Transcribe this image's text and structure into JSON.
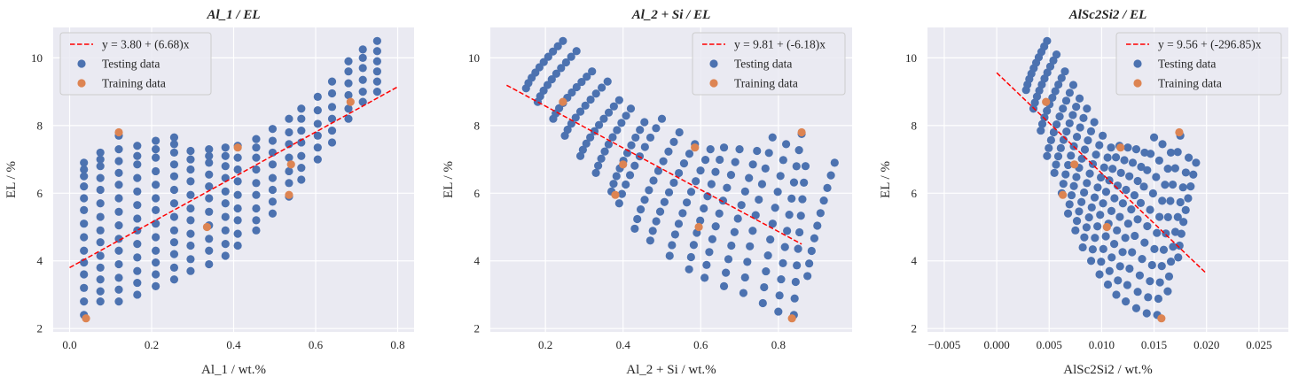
{
  "colors": {
    "panel_background": "#EAEAF2",
    "grid": "#FFFFFF",
    "testing": "#4C72B0",
    "training": "#DD8452",
    "fit_line": "#FF0000"
  },
  "legend": {
    "testing_label": "Testing data",
    "training_label": "Training data"
  },
  "chart_data": [
    {
      "type": "scatter",
      "title": "Al_1 / EL",
      "xlabel": "Al_1 / wt.%",
      "ylabel": "EL / %",
      "xlim": [
        -0.04,
        0.84
      ],
      "ylim": [
        1.9,
        10.9
      ],
      "x_ticks": [
        0.0,
        0.2,
        0.4,
        0.6,
        0.8
      ],
      "x_tick_labels": [
        "0.0",
        "0.2",
        "0.4",
        "0.6",
        "0.8"
      ],
      "y_ticks": [
        2,
        4,
        6,
        8,
        10
      ],
      "y_tick_labels": [
        "2",
        "4",
        "6",
        "8",
        "10"
      ],
      "grid": true,
      "legend_position": "top-left",
      "fit": {
        "label": "y = 3.80 + (6.68)x",
        "intercept": 3.8,
        "slope": 6.68,
        "x_range": [
          0.0,
          0.8
        ]
      },
      "testing_columns": [
        {
          "x": 0.035,
          "y": [
            2.4,
            2.8,
            3.2,
            3.6,
            3.95,
            4.3,
            4.7,
            5.1,
            5.5,
            5.85,
            6.2,
            6.5,
            6.7,
            6.9
          ]
        },
        {
          "x": 0.075,
          "y": [
            2.8,
            3.1,
            3.45,
            3.8,
            4.15,
            4.55,
            4.9,
            5.3,
            5.7,
            6.1,
            6.45,
            6.8,
            7.0,
            7.2
          ]
        },
        {
          "x": 0.12,
          "y": [
            2.8,
            3.15,
            3.5,
            3.9,
            4.3,
            4.65,
            5.05,
            5.45,
            5.85,
            6.25,
            6.6,
            6.95,
            7.3,
            7.7
          ]
        },
        {
          "x": 0.165,
          "y": [
            3.0,
            3.35,
            3.7,
            4.1,
            4.5,
            4.9,
            5.25,
            5.65,
            6.05,
            6.45,
            6.85,
            7.1,
            7.4
          ]
        },
        {
          "x": 0.21,
          "y": [
            3.25,
            3.6,
            3.95,
            4.3,
            4.7,
            5.1,
            5.5,
            5.85,
            6.25,
            6.65,
            7.05,
            7.3,
            7.55
          ]
        },
        {
          "x": 0.255,
          "y": [
            3.45,
            3.8,
            4.2,
            4.55,
            4.9,
            5.3,
            5.7,
            6.1,
            6.5,
            6.85,
            7.2,
            7.45,
            7.65
          ]
        },
        {
          "x": 0.295,
          "y": [
            3.7,
            4.05,
            4.45,
            4.8,
            5.2,
            5.55,
            5.95,
            6.35,
            6.7,
            7.0,
            7.25
          ]
        },
        {
          "x": 0.34,
          "y": [
            3.9,
            4.3,
            4.65,
            5.05,
            5.45,
            5.85,
            6.2,
            6.55,
            6.9,
            7.1,
            7.3
          ]
        },
        {
          "x": 0.38,
          "y": [
            4.15,
            4.5,
            4.9,
            5.3,
            5.7,
            6.05,
            6.45,
            6.8,
            7.1,
            7.35
          ]
        },
        {
          "x": 0.41,
          "y": [
            4.45,
            4.8,
            5.2,
            5.55,
            5.95,
            6.35,
            6.7,
            7.05,
            7.4
          ]
        },
        {
          "x": 0.455,
          "y": [
            4.9,
            5.2,
            5.55,
            5.95,
            6.3,
            6.7,
            7.05,
            7.35,
            7.6
          ]
        },
        {
          "x": 0.495,
          "y": [
            5.4,
            5.75,
            6.1,
            6.45,
            6.85,
            7.2,
            7.55,
            7.9
          ]
        },
        {
          "x": 0.535,
          "y": [
            5.9,
            6.3,
            6.65,
            7.05,
            7.45,
            7.8,
            8.2
          ]
        },
        {
          "x": 0.565,
          "y": [
            6.4,
            6.75,
            7.1,
            7.5,
            7.85,
            8.2,
            8.5
          ]
        },
        {
          "x": 0.605,
          "y": [
            7.0,
            7.35,
            7.7,
            8.05,
            8.45,
            8.85
          ]
        },
        {
          "x": 0.64,
          "y": [
            7.5,
            7.85,
            8.2,
            8.55,
            8.95,
            9.3
          ]
        },
        {
          "x": 0.68,
          "y": [
            8.2,
            8.5,
            8.9,
            9.25,
            9.6,
            9.9
          ]
        },
        {
          "x": 0.715,
          "y": [
            8.7,
            9.0,
            9.35,
            9.7,
            10.0,
            10.25
          ]
        },
        {
          "x": 0.75,
          "y": [
            9.0,
            9.3,
            9.6,
            9.9,
            10.2,
            10.5
          ]
        }
      ],
      "training_points": [
        {
          "x": 0.04,
          "y": 2.3
        },
        {
          "x": 0.12,
          "y": 7.8
        },
        {
          "x": 0.335,
          "y": 5.0
        },
        {
          "x": 0.41,
          "y": 7.35
        },
        {
          "x": 0.535,
          "y": 5.95
        },
        {
          "x": 0.54,
          "y": 6.85
        },
        {
          "x": 0.685,
          "y": 8.7
        }
      ]
    },
    {
      "type": "scatter",
      "title": "Al_2 + Si / EL",
      "xlabel": "Al_2 + Si / wt.%",
      "ylabel": "EL / %",
      "xlim": [
        0.058,
        0.99
      ],
      "ylim": [
        1.9,
        10.9
      ],
      "x_ticks": [
        0.2,
        0.4,
        0.6,
        0.8
      ],
      "x_tick_labels": [
        "0.2",
        "0.4",
        "0.6",
        "0.8"
      ],
      "y_ticks": [
        2,
        4,
        6,
        8,
        10
      ],
      "y_tick_labels": [
        "2",
        "4",
        "6",
        "8",
        "10"
      ],
      "grid": true,
      "legend_position": "top-right",
      "fit": {
        "label": "y = 9.81 + (-6.18)x",
        "intercept": 9.81,
        "slope": -6.18,
        "x_range": [
          0.1,
          0.86
        ]
      },
      "testing_curves": [
        {
          "x_start": 0.15,
          "y_start": 9.1,
          "x_end": 0.245,
          "y_end": 10.5,
          "n": 10
        },
        {
          "x_start": 0.18,
          "y_start": 8.7,
          "x_end": 0.28,
          "y_end": 10.2,
          "n": 10
        },
        {
          "x_start": 0.22,
          "y_start": 8.2,
          "x_end": 0.32,
          "y_end": 9.6,
          "n": 10
        },
        {
          "x_start": 0.25,
          "y_start": 7.7,
          "x_end": 0.36,
          "y_end": 9.3,
          "n": 10
        },
        {
          "x_start": 0.29,
          "y_start": 7.1,
          "x_end": 0.39,
          "y_end": 8.75,
          "n": 10
        },
        {
          "x_start": 0.33,
          "y_start": 6.6,
          "x_end": 0.42,
          "y_end": 8.5,
          "n": 10
        },
        {
          "x_start": 0.37,
          "y_start": 6.05,
          "x_end": 0.455,
          "y_end": 8.1,
          "n": 10
        },
        {
          "x_start": 0.39,
          "y_start": 5.7,
          "x_end": 0.5,
          "y_end": 8.2,
          "n": 10
        },
        {
          "x_start": 0.43,
          "y_start": 4.95,
          "x_end": 0.545,
          "y_end": 7.8,
          "n": 11
        },
        {
          "x_start": 0.47,
          "y_start": 4.6,
          "x_end": 0.585,
          "y_end": 7.45,
          "n": 11
        },
        {
          "x_start": 0.52,
          "y_start": 4.15,
          "x_end": 0.625,
          "y_end": 7.3,
          "n": 11
        },
        {
          "x_start": 0.57,
          "y_start": 3.75,
          "x_end": 0.66,
          "y_end": 7.35,
          "n": 11
        },
        {
          "x_start": 0.61,
          "y_start": 3.5,
          "x_end": 0.7,
          "y_end": 7.3,
          "n": 11
        },
        {
          "x_start": 0.66,
          "y_start": 3.25,
          "x_end": 0.745,
          "y_end": 7.25,
          "n": 11
        },
        {
          "x_start": 0.71,
          "y_start": 3.05,
          "x_end": 0.785,
          "y_end": 7.65,
          "n": 11
        },
        {
          "x_start": 0.76,
          "y_start": 2.75,
          "x_end": 0.82,
          "y_end": 7.45,
          "n": 11
        },
        {
          "x_start": 0.8,
          "y_start": 2.5,
          "x_end": 0.86,
          "y_end": 7.75,
          "n": 12
        },
        {
          "x_start": 0.84,
          "y_start": 2.4,
          "x_end": 0.87,
          "y_end": 6.8,
          "n": 10
        },
        {
          "x_start": 0.875,
          "y_start": 3.55,
          "x_end": 0.945,
          "y_end": 6.9,
          "n": 10
        }
      ],
      "training_points": [
        {
          "x": 0.245,
          "y": 8.7
        },
        {
          "x": 0.38,
          "y": 5.95
        },
        {
          "x": 0.4,
          "y": 6.85
        },
        {
          "x": 0.585,
          "y": 7.35
        },
        {
          "x": 0.595,
          "y": 5.0
        },
        {
          "x": 0.835,
          "y": 2.3
        },
        {
          "x": 0.86,
          "y": 7.8
        }
      ]
    },
    {
      "type": "scatter",
      "title": "AlSc2Si2 / EL",
      "xlabel": "AlSc2Si2 / wt.%",
      "ylabel": "EL / %",
      "xlim": [
        -0.0066,
        0.0278
      ],
      "ylim": [
        1.9,
        10.9
      ],
      "x_ticks": [
        -0.005,
        0.0,
        0.005,
        0.01,
        0.015,
        0.02,
        0.025
      ],
      "x_tick_labels": [
        "−0.005",
        "0.000",
        "0.005",
        "0.010",
        "0.015",
        "0.020",
        "0.025"
      ],
      "y_ticks": [
        2,
        4,
        6,
        8,
        10
      ],
      "y_tick_labels": [
        "2",
        "4",
        "6",
        "8",
        "10"
      ],
      "grid": true,
      "legend_position": "top-right",
      "fit": {
        "label": "y = 9.56 + (-296.85)x",
        "intercept": 9.56,
        "slope": -296.85,
        "x_range": [
          0.0,
          0.02
        ]
      },
      "testing_curves": [
        {
          "x_start": 0.0028,
          "y_start": 9.05,
          "x_end": 0.0048,
          "y_end": 10.5,
          "n": 10
        },
        {
          "x_start": 0.0035,
          "y_start": 8.5,
          "x_end": 0.0057,
          "y_end": 10.1,
          "n": 10
        },
        {
          "x_start": 0.0042,
          "y_start": 7.85,
          "x_end": 0.0065,
          "y_end": 9.6,
          "n": 10
        },
        {
          "x_start": 0.0048,
          "y_start": 7.1,
          "x_end": 0.0073,
          "y_end": 9.2,
          "n": 10
        },
        {
          "x_start": 0.0055,
          "y_start": 6.6,
          "x_end": 0.0079,
          "y_end": 8.8,
          "n": 10
        },
        {
          "x_start": 0.0062,
          "y_start": 6.0,
          "x_end": 0.0086,
          "y_end": 8.5,
          "n": 10
        },
        {
          "x_start": 0.0068,
          "y_start": 5.4,
          "x_end": 0.0093,
          "y_end": 8.1,
          "n": 11
        },
        {
          "x_start": 0.0075,
          "y_start": 4.9,
          "x_end": 0.0101,
          "y_end": 7.7,
          "n": 11
        },
        {
          "x_start": 0.0082,
          "y_start": 4.4,
          "x_end": 0.0109,
          "y_end": 7.35,
          "n": 11
        },
        {
          "x_start": 0.009,
          "y_start": 4.0,
          "x_end": 0.0117,
          "y_end": 7.4,
          "n": 11
        },
        {
          "x_start": 0.0098,
          "y_start": 3.6,
          "x_end": 0.0125,
          "y_end": 7.35,
          "n": 11
        },
        {
          "x_start": 0.0106,
          "y_start": 3.3,
          "x_end": 0.0133,
          "y_end": 7.3,
          "n": 11
        },
        {
          "x_start": 0.0114,
          "y_start": 3.0,
          "x_end": 0.0141,
          "y_end": 7.2,
          "n": 11
        },
        {
          "x_start": 0.0123,
          "y_start": 2.8,
          "x_end": 0.015,
          "y_end": 7.65,
          "n": 11
        },
        {
          "x_start": 0.0133,
          "y_start": 2.6,
          "x_end": 0.0158,
          "y_end": 7.45,
          "n": 11
        },
        {
          "x_start": 0.0143,
          "y_start": 2.45,
          "x_end": 0.0166,
          "y_end": 7.2,
          "n": 11
        },
        {
          "x_start": 0.0153,
          "y_start": 2.4,
          "x_end": 0.0175,
          "y_end": 7.7,
          "n": 12
        },
        {
          "x_start": 0.0163,
          "y_start": 3.1,
          "x_end": 0.0183,
          "y_end": 7.05,
          "n": 10
        },
        {
          "x_start": 0.0173,
          "y_start": 4.1,
          "x_end": 0.019,
          "y_end": 6.9,
          "n": 9
        }
      ],
      "training_points": [
        {
          "x": 0.0047,
          "y": 8.7
        },
        {
          "x": 0.0063,
          "y": 5.95
        },
        {
          "x": 0.0074,
          "y": 6.85
        },
        {
          "x": 0.0105,
          "y": 5.0
        },
        {
          "x": 0.0118,
          "y": 7.35
        },
        {
          "x": 0.0157,
          "y": 2.3
        },
        {
          "x": 0.0174,
          "y": 7.8
        }
      ]
    }
  ]
}
